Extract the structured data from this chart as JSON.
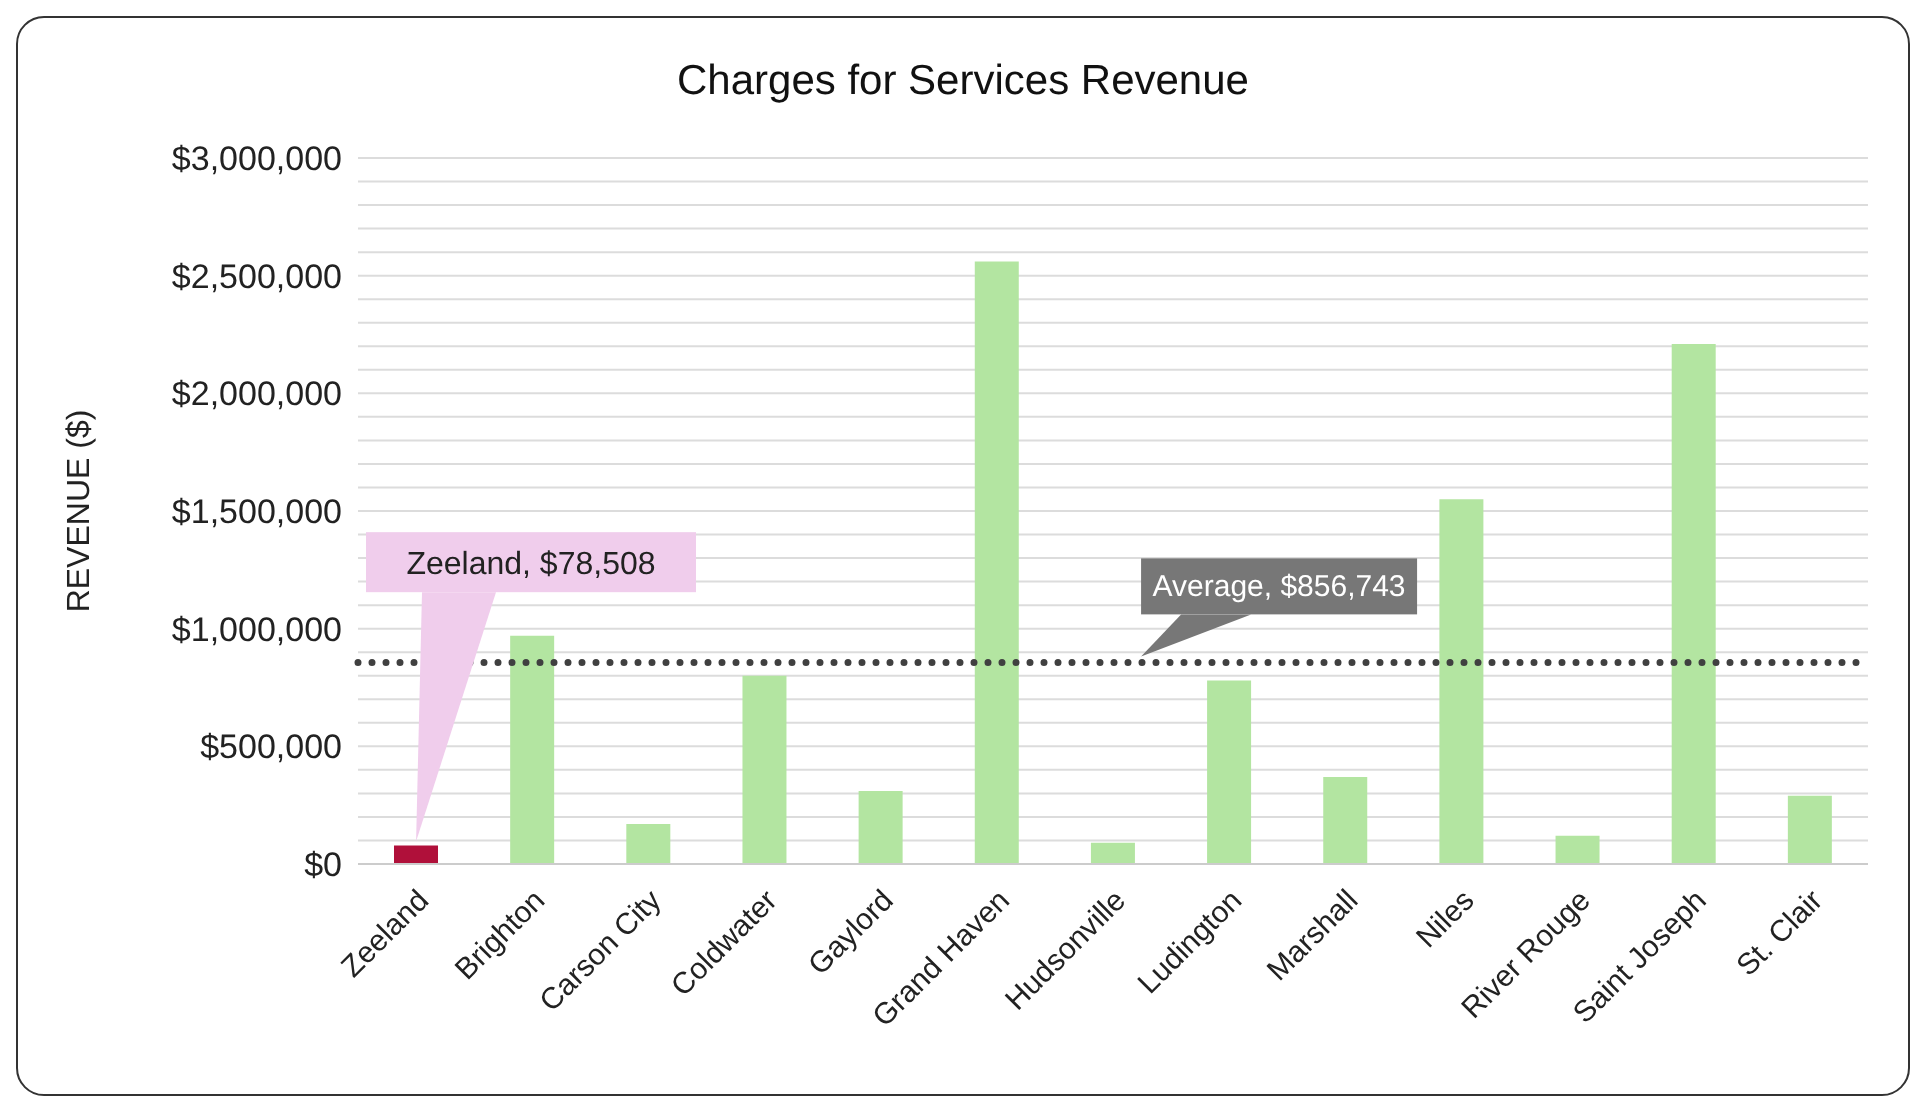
{
  "chart_data": {
    "type": "bar",
    "title": "Charges for Services Revenue",
    "ylabel": "REVENUE ($)",
    "categories": [
      "Zeeland",
      "Brighton",
      "Carson City",
      "Coldwater",
      "Gaylord",
      "Grand Haven",
      "Hudsonville",
      "Ludington",
      "Marshall",
      "Niles",
      "River Rouge",
      "Saint Joseph",
      "St. Clair"
    ],
    "values": [
      78508,
      970000,
      170000,
      800000,
      310000,
      2560000,
      90000,
      780000,
      370000,
      1550000,
      120000,
      2210000,
      290000
    ],
    "value_labels": [
      "Zeeland, $78,508",
      null,
      null,
      null,
      null,
      null,
      null,
      null,
      null,
      null,
      null,
      null,
      null
    ],
    "colors": [
      "#b0103a",
      "#b3e5a1",
      "#b3e5a1",
      "#b3e5a1",
      "#b3e5a1",
      "#b3e5a1",
      "#b3e5a1",
      "#b3e5a1",
      "#b3e5a1",
      "#b3e5a1",
      "#b3e5a1",
      "#b3e5a1",
      "#b3e5a1"
    ],
    "ylim": [
      0,
      3000000
    ],
    "yticks": [
      {
        "value": 0,
        "label": "$0"
      },
      {
        "value": 100000,
        "label": null
      },
      {
        "value": 200000,
        "label": null
      },
      {
        "value": 300000,
        "label": null
      },
      {
        "value": 400000,
        "label": null
      },
      {
        "value": 500000,
        "label": "$500,000"
      },
      {
        "value": 600000,
        "label": null
      },
      {
        "value": 700000,
        "label": null
      },
      {
        "value": 800000,
        "label": null
      },
      {
        "value": 900000,
        "label": null
      },
      {
        "value": 1000000,
        "label": "$1,000,000"
      },
      {
        "value": 1100000,
        "label": null
      },
      {
        "value": 1200000,
        "label": null
      },
      {
        "value": 1300000,
        "label": null
      },
      {
        "value": 1400000,
        "label": null
      },
      {
        "value": 1500000,
        "label": "$1,500,000"
      },
      {
        "value": 1600000,
        "label": null
      },
      {
        "value": 1700000,
        "label": null
      },
      {
        "value": 1800000,
        "label": null
      },
      {
        "value": 1900000,
        "label": null
      },
      {
        "value": 2000000,
        "label": "$2,000,000"
      },
      {
        "value": 2100000,
        "label": null
      },
      {
        "value": 2200000,
        "label": null
      },
      {
        "value": 2300000,
        "label": null
      },
      {
        "value": 2400000,
        "label": null
      },
      {
        "value": 2500000,
        "label": "$2,500,000"
      },
      {
        "value": 2600000,
        "label": null
      },
      {
        "value": 2700000,
        "label": null
      },
      {
        "value": 2800000,
        "label": null
      },
      {
        "value": 2900000,
        "label": null
      },
      {
        "value": 3000000,
        "label": "$3,000,000"
      }
    ],
    "grid": "y",
    "ref_lines": [
      {
        "axis": "y",
        "value": 856743,
        "label": "Average, $856,743",
        "color": "#404040",
        "line_style": "dotted"
      }
    ]
  }
}
